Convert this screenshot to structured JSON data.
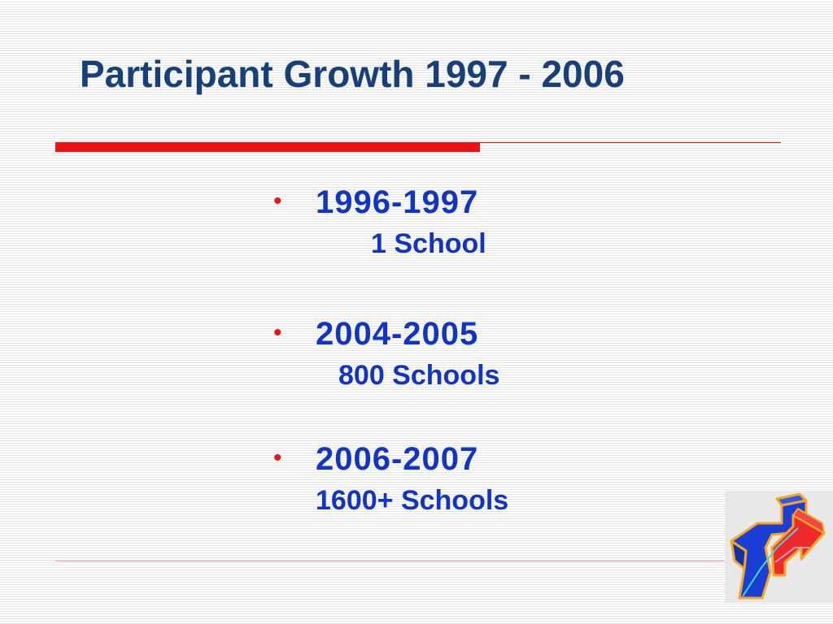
{
  "slide": {
    "title": "Participant Growth 1997 - 2006"
  },
  "bullets": [
    {
      "year": "1996-1997",
      "count": "1 School"
    },
    {
      "year": "2004-2005",
      "count": "800 Schools"
    },
    {
      "year": "2006-2007",
      "count": "1600+ Schools"
    }
  ],
  "bullet_symbol": "•",
  "colors": {
    "title": "#17407a",
    "accent_red": "#ee1111",
    "body_text": "#1134c8",
    "logo_blue": "#1a3fd6",
    "logo_red": "#ee2a2a",
    "logo_orange": "#f5a623",
    "logo_cyan": "#41d9e8"
  },
  "logo_icon": "3d-arrow-logo-icon"
}
